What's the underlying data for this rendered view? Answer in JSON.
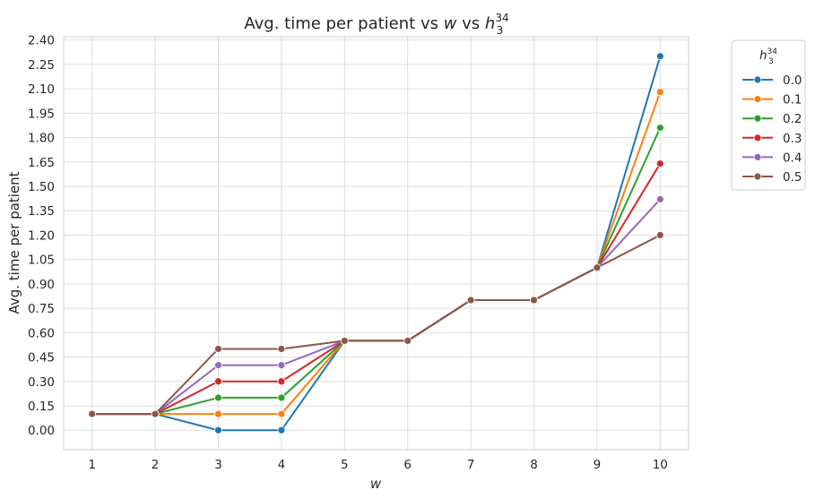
{
  "chart_data": {
    "type": "line",
    "title": "Avg. time per patient vs w vs h",
    "title_parts": {
      "prefix": "Avg. time per patient vs ",
      "x_symbol": "w",
      "middle": " vs ",
      "h_symbol": "h",
      "h_sub": "3",
      "h_sup": "34"
    },
    "xlabel": "w",
    "ylabel": "Avg. time per patient",
    "x": [
      1,
      2,
      3,
      4,
      5,
      6,
      7,
      8,
      9,
      10
    ],
    "xticks": [
      "1",
      "2",
      "3",
      "4",
      "5",
      "6",
      "7",
      "8",
      "9",
      "10"
    ],
    "yticks": [
      "0.00",
      "0.15",
      "0.30",
      "0.45",
      "0.60",
      "0.75",
      "0.90",
      "1.05",
      "1.20",
      "1.35",
      "1.50",
      "1.65",
      "1.80",
      "1.95",
      "2.10",
      "2.25",
      "2.40"
    ],
    "ylim": [
      -0.12,
      2.42
    ],
    "xlim": [
      0.55,
      10.45
    ],
    "grid": true,
    "legend": {
      "title": "h",
      "title_sub": "3",
      "title_sup": "34",
      "position": "outside-right"
    },
    "series": [
      {
        "name": "0.0",
        "color": "#1f77b4",
        "values": [
          0.1,
          0.1,
          0.0,
          0.0,
          0.55,
          0.55,
          0.8,
          0.8,
          1.0,
          2.3
        ]
      },
      {
        "name": "0.1",
        "color": "#ff7f0e",
        "values": [
          0.1,
          0.1,
          0.1,
          0.1,
          0.55,
          0.55,
          0.8,
          0.8,
          1.0,
          2.08
        ]
      },
      {
        "name": "0.2",
        "color": "#2ca02c",
        "values": [
          0.1,
          0.1,
          0.2,
          0.2,
          0.55,
          0.55,
          0.8,
          0.8,
          1.0,
          1.86
        ]
      },
      {
        "name": "0.3",
        "color": "#d62728",
        "values": [
          0.1,
          0.1,
          0.3,
          0.3,
          0.55,
          0.55,
          0.8,
          0.8,
          1.0,
          1.64
        ]
      },
      {
        "name": "0.4",
        "color": "#9467bd",
        "values": [
          0.1,
          0.1,
          0.4,
          0.4,
          0.55,
          0.55,
          0.8,
          0.8,
          1.0,
          1.42
        ]
      },
      {
        "name": "0.5",
        "color": "#8c564b",
        "values": [
          0.1,
          0.1,
          0.5,
          0.5,
          0.55,
          0.55,
          0.8,
          0.8,
          1.0,
          1.2
        ]
      }
    ]
  }
}
